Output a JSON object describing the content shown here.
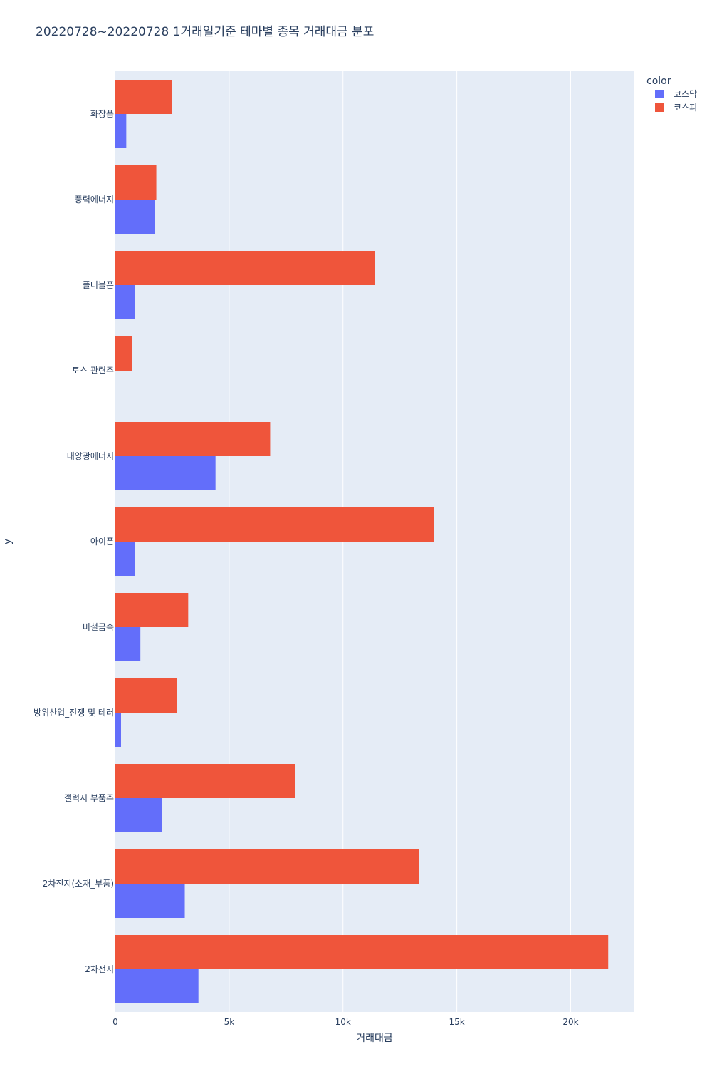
{
  "chart_data": {
    "type": "bar",
    "orientation": "horizontal",
    "barmode": "group",
    "title": "20220728~20220728 1거래일기준 테마별 종목 거래대금 분포",
    "xlabel": "거래대금",
    "ylabel": "y",
    "xlim": [
      0,
      22800
    ],
    "x_ticks": [
      0,
      5000,
      10000,
      15000,
      20000
    ],
    "x_tick_labels": [
      "0",
      "5k",
      "10k",
      "15k",
      "20k"
    ],
    "grid": true,
    "legend_title": "color",
    "legend_position": "top-right",
    "categories": [
      "2차전지",
      "2차전지(소재_부품)",
      "갤럭시 부품주",
      "방위산업_전쟁 및 테러",
      "비철금속",
      "아이폰",
      "태양광에너지",
      "토스 관련주",
      "폴더블폰",
      "풍력에너지",
      "화장품"
    ],
    "series": [
      {
        "name": "코스닥",
        "color": "#636efa",
        "values": [
          3650,
          3050,
          2050,
          250,
          1100,
          850,
          4400,
          0,
          850,
          1750,
          480
        ]
      },
      {
        "name": "코스피",
        "color": "#ef553b",
        "values": [
          21650,
          13350,
          7900,
          2700,
          3200,
          14000,
          6800,
          750,
          11400,
          1800,
          2500
        ]
      }
    ],
    "colors": {
      "plot_background": "#e5ecf6",
      "gridline": "#ffffff",
      "text": "#2a3f5f"
    }
  }
}
